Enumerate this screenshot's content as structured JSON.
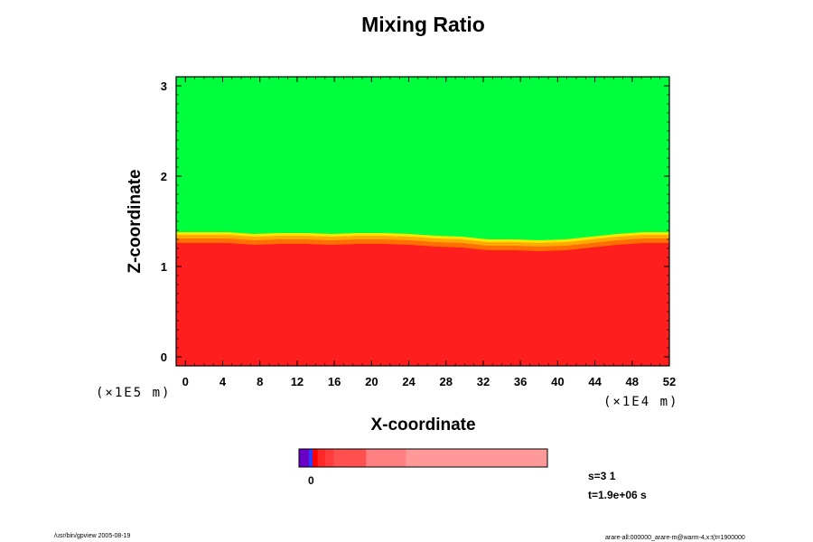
{
  "chart_data": {
    "type": "heatmap",
    "title": "Mixing Ratio",
    "xlabel": "X-coordinate",
    "ylabel": "Z-coordinate",
    "x_ticks": [
      "0",
      "4",
      "8",
      "12",
      "16",
      "20",
      "24",
      "28",
      "32",
      "36",
      "40",
      "44",
      "48",
      "52"
    ],
    "y_ticks": [
      "0",
      "1",
      "2",
      "3"
    ],
    "x_unit": "(×1E4 m)",
    "y_unit": "(×1E5 m)",
    "xlim": [
      -1,
      52
    ],
    "ylim": [
      -0.1,
      3.1
    ],
    "boundary_z": [
      1.38,
      1.38,
      1.38,
      1.36,
      1.37,
      1.37,
      1.36,
      1.37,
      1.37,
      1.36,
      1.34,
      1.33,
      1.3,
      1.3,
      1.29,
      1.3,
      1.33,
      1.36,
      1.38,
      1.38
    ],
    "colors": {
      "upper": "#00ff3c",
      "lower": "#ff1e1e",
      "band": [
        "#ffe600",
        "#ffaa00",
        "#ff6e00"
      ]
    },
    "colorbar": {
      "tick_label": "0",
      "segments": [
        "#6a00c8",
        "#2a3cff",
        "#ff0000",
        "#ff2828",
        "#ff3c3c",
        "#ff5050",
        "#ff8080",
        "#ff9898"
      ]
    }
  },
  "info": {
    "step": "s=3 1",
    "time": "t=1.9e+06 s"
  },
  "footer": {
    "left": "/usr/bin/gpview 2005-08-19",
    "right": "arare-all:000000_arare-m@warm-4,x:t(t=1900000"
  }
}
